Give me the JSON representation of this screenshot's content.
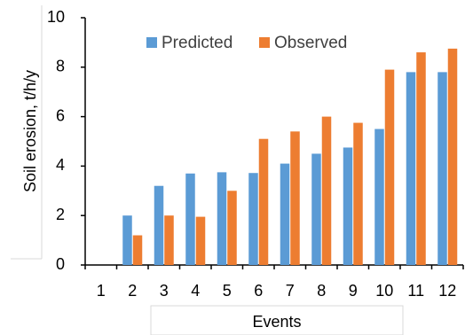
{
  "chart_data": {
    "type": "bar",
    "title": "",
    "xlabel": "Events",
    "ylabel": "Soil erosion, t/h/y",
    "categories": [
      "1",
      "2",
      "3",
      "4",
      "5",
      "6",
      "7",
      "8",
      "9",
      "10",
      "11",
      "12"
    ],
    "series": [
      {
        "name": "Predicted",
        "color": "#5B9BD5",
        "values": [
          0,
          2.0,
          3.2,
          3.7,
          3.75,
          3.72,
          4.1,
          4.5,
          4.75,
          5.5,
          7.8,
          7.8
        ]
      },
      {
        "name": "Observed",
        "color": "#ED7D31",
        "values": [
          0,
          1.2,
          2.0,
          1.95,
          3.0,
          5.1,
          5.4,
          6.0,
          5.75,
          7.9,
          8.6,
          8.75
        ]
      }
    ],
    "ylim": [
      0,
      10
    ],
    "yticks": [
      0,
      2,
      4,
      6,
      8,
      10
    ],
    "grid": false,
    "legend_position": "top-right"
  }
}
